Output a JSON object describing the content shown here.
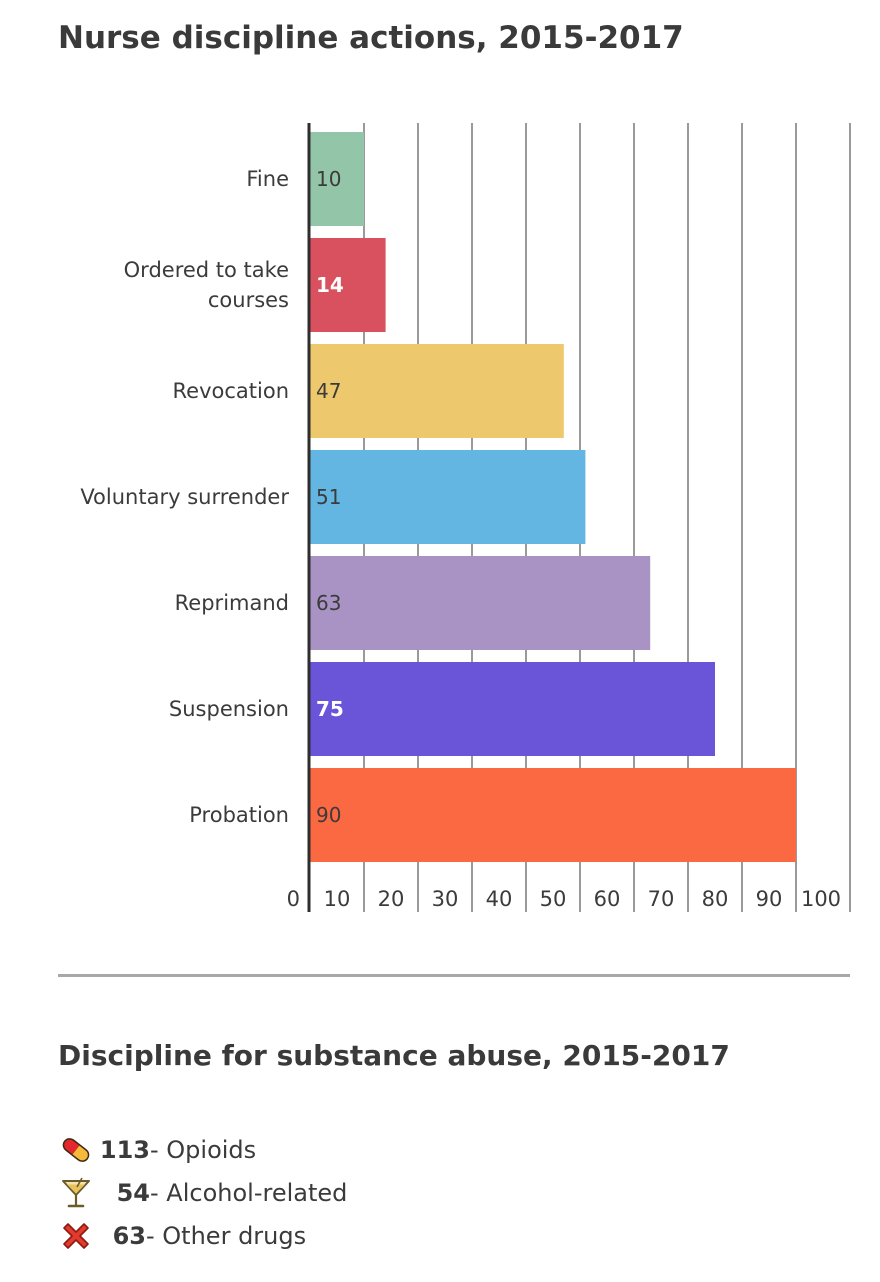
{
  "chart_data": {
    "type": "bar",
    "orientation": "horizontal",
    "title": "Nurse discipline actions, 2015-2017",
    "categories": [
      "Fine",
      "Ordered to take courses",
      "Revocation",
      "Voluntary surrender",
      "Reprimand",
      "Suspension",
      "Probation"
    ],
    "category_lines": [
      [
        "Fine"
      ],
      [
        "Ordered to take",
        "courses"
      ],
      [
        "Revocation"
      ],
      [
        "Voluntary surrender"
      ],
      [
        "Reprimand"
      ],
      [
        "Suspension"
      ],
      [
        "Probation"
      ]
    ],
    "values": [
      10,
      14,
      47,
      51,
      63,
      75,
      90
    ],
    "data_labels": [
      "10",
      "14",
      "47",
      "51",
      "63",
      "75",
      "90"
    ],
    "colors": [
      "#93c6a8",
      "#d9505e",
      "#edc86c",
      "#62b6e1",
      "#a993c4",
      "#6a55d8",
      "#fb6943"
    ],
    "label_colors": [
      "#3b3b3b",
      "#ffffff",
      "#3b3b3b",
      "#3b3b3b",
      "#3b3b3b",
      "#ffffff",
      "#3b3b3b"
    ],
    "xlim": [
      0,
      100
    ],
    "xticks": [
      0,
      10,
      20,
      30,
      40,
      50,
      60,
      70,
      80,
      90,
      100
    ],
    "xlabel": "",
    "ylabel": "",
    "grid": true,
    "legend": "none"
  },
  "substance_abuse": {
    "title": "Discipline for substance abuse, 2015-2017",
    "items": [
      {
        "icon": "pill-icon",
        "count": "113",
        "label": " - Opioids"
      },
      {
        "icon": "cocktail-glass-icon",
        "count": "54",
        "label": " - Alcohol-related"
      },
      {
        "icon": "cross-mark-icon",
        "count": "63",
        "label": " - Other drugs"
      }
    ],
    "colors": {
      "pill_top": "#e3272d",
      "pill_bottom": "#f6b93b",
      "glass": "#7a6a3a",
      "cross": "#e23b2e"
    }
  }
}
